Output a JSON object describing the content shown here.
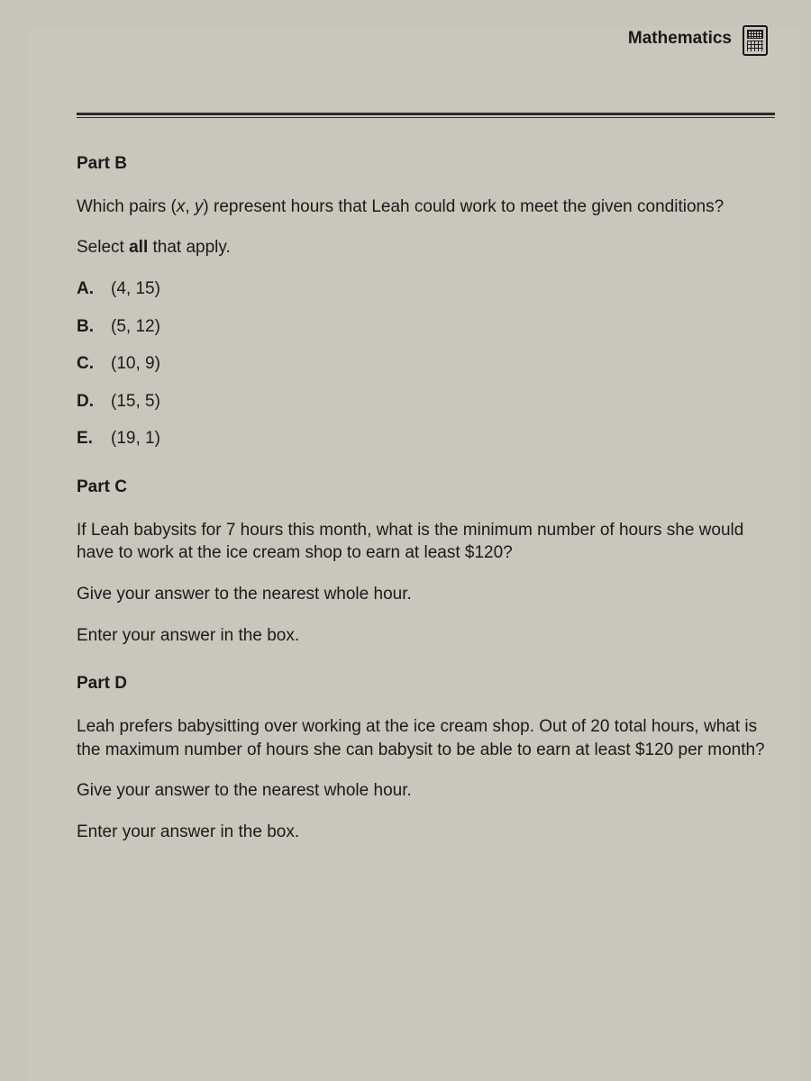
{
  "header": {
    "subject": "Mathematics"
  },
  "partB": {
    "heading": "Part B",
    "question_pre": "Which pairs (",
    "var_x": "x",
    "comma": ", ",
    "var_y": "y",
    "question_post": ") represent hours that Leah could work to meet the given conditions?",
    "instruction_pre": "Select ",
    "instruction_bold": "all",
    "instruction_post": " that apply.",
    "options": [
      {
        "letter": "A.",
        "text": "(4, 15)"
      },
      {
        "letter": "B.",
        "text": "(5, 12)"
      },
      {
        "letter": "C.",
        "text": "(10, 9)"
      },
      {
        "letter": "D.",
        "text": "(15, 5)"
      },
      {
        "letter": "E.",
        "text": "(19, 1)"
      }
    ]
  },
  "partC": {
    "heading": "Part C",
    "question": "If Leah babysits for 7 hours this month, what is the minimum number of hours she would have to work at the ice cream shop to earn at least $120?",
    "line2": "Give your answer to the nearest whole hour.",
    "line3": "Enter your answer in the box."
  },
  "partD": {
    "heading": "Part D",
    "question": "Leah prefers babysitting over working at the ice cream shop. Out of 20 total hours, what is the maximum number of hours she can babysit to be able to earn at least $120 per month?",
    "line2": "Give your answer to the nearest whole hour.",
    "line3": "Enter your answer in the box."
  },
  "colors": {
    "page_bg": "#cac6bc",
    "text": "#1a1a1a",
    "rule": "#2a2a2a"
  }
}
